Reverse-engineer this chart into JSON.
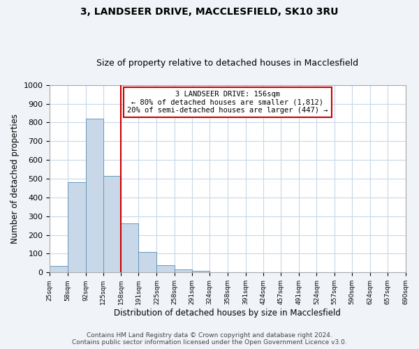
{
  "title": "3, LANDSEER DRIVE, MACCLESFIELD, SK10 3RU",
  "subtitle": "Size of property relative to detached houses in Macclesfield",
  "xlabel": "Distribution of detached houses by size in Macclesfield",
  "ylabel": "Number of detached properties",
  "bin_edges": [
    25,
    58,
    92,
    125,
    158,
    191,
    225,
    258,
    291,
    324,
    358,
    391,
    424,
    457,
    491,
    524,
    557,
    590,
    624,
    657,
    690
  ],
  "bar_heights": [
    33,
    480,
    820,
    515,
    262,
    110,
    40,
    18,
    8,
    0,
    0,
    0,
    0,
    0,
    0,
    0,
    0,
    0,
    0,
    0
  ],
  "bar_color": "#c8d8e8",
  "bar_edge_color": "#6699bb",
  "vertical_line_x": 158,
  "vertical_line_color": "#cc0000",
  "annotation_line1": "3 LANDSEER DRIVE: 156sqm",
  "annotation_line2": "← 80% of detached houses are smaller (1,812)",
  "annotation_line3": "20% of semi-detached houses are larger (447) →",
  "annotation_box_color": "#cc0000",
  "annotation_bg_color": "#ffffff",
  "ylim": [
    0,
    1000
  ],
  "yticks": [
    0,
    100,
    200,
    300,
    400,
    500,
    600,
    700,
    800,
    900,
    1000
  ],
  "xtick_labels": [
    "25sqm",
    "58sqm",
    "92sqm",
    "125sqm",
    "158sqm",
    "191sqm",
    "225sqm",
    "258sqm",
    "291sqm",
    "324sqm",
    "358sqm",
    "391sqm",
    "424sqm",
    "457sqm",
    "491sqm",
    "524sqm",
    "557sqm",
    "590sqm",
    "624sqm",
    "657sqm",
    "690sqm"
  ],
  "footer_line1": "Contains HM Land Registry data © Crown copyright and database right 2024.",
  "footer_line2": "Contains public sector information licensed under the Open Government Licence v3.0.",
  "background_color": "#f0f4f8",
  "plot_background_color": "#ffffff",
  "grid_color": "#c8d8e8",
  "title_fontsize": 10,
  "subtitle_fontsize": 9,
  "footer_fontsize": 6.5
}
